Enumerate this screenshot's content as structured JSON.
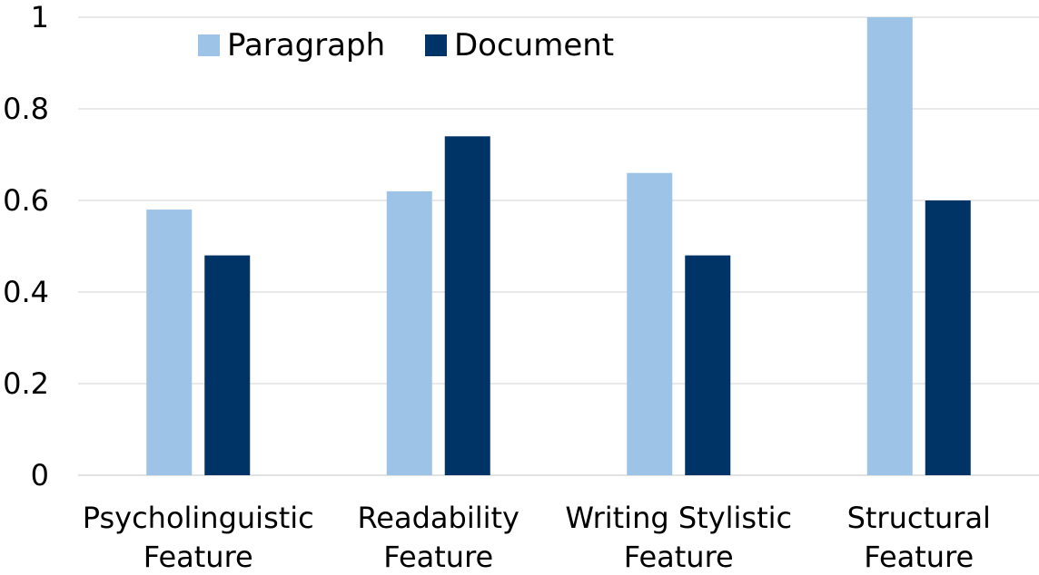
{
  "chart_data": {
    "type": "bar",
    "categories": [
      [
        "Psycholinguistic",
        "Feature"
      ],
      [
        "Readability",
        "Feature"
      ],
      [
        "Writing Stylistic",
        "Feature"
      ],
      [
        "Structural",
        "Feature"
      ]
    ],
    "series": [
      {
        "name": "Paragraph",
        "color": "#9dc3e6",
        "values": [
          0.58,
          0.62,
          0.66,
          1.0
        ]
      },
      {
        "name": "Document",
        "color": "#003366",
        "values": [
          0.48,
          0.74,
          0.48,
          0.6
        ]
      }
    ],
    "ylim": [
      0,
      1
    ],
    "yticks": [
      {
        "value": 0,
        "label": "0"
      },
      {
        "value": 0.2,
        "label": "0.2"
      },
      {
        "value": 0.4,
        "label": "0.4"
      },
      {
        "value": 0.6,
        "label": "0.6"
      },
      {
        "value": 0.8,
        "label": "0.8"
      },
      {
        "value": 1,
        "label": "1"
      }
    ],
    "grid": true,
    "legend": "top"
  }
}
